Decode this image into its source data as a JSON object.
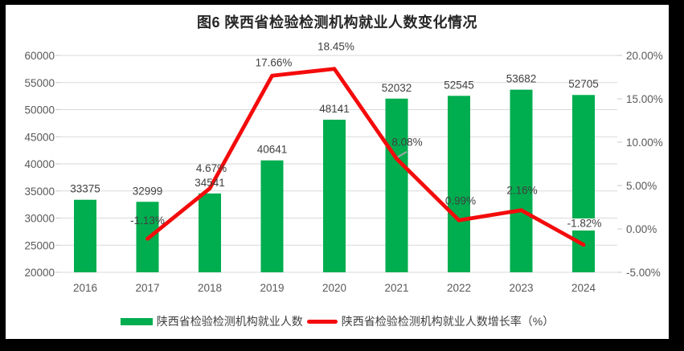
{
  "title": "图6 陕西省检验检测机构就业人数变化情况",
  "palette": {
    "bar_green": "#00ad4f",
    "line_red": "#f40b0b",
    "gridline": "#d9d9d9",
    "tick": "#c9c9c9",
    "axis_text": "#595959",
    "data_label_text": "#404040",
    "panel_bg": "#ffffff",
    "frame_bg": "#000000",
    "leader_line": "#a6a6a6"
  },
  "chart_data": {
    "type": "bar",
    "subtype": "combo-bar-line",
    "title": "图6 陕西省检验检测机构就业人数变化情况",
    "categories": [
      "2016",
      "2017",
      "2018",
      "2019",
      "2020",
      "2021",
      "2022",
      "2023",
      "2024"
    ],
    "series": [
      {
        "name": "陕西省检验检测机构就业人数",
        "type": "bar",
        "axis": "left",
        "values": [
          33375,
          32999,
          34541,
          40641,
          48141,
          52032,
          52545,
          53682,
          52705
        ],
        "labels": [
          "33375",
          "32999",
          "34541",
          "40641",
          "48141",
          "52032",
          "52545",
          "53682",
          "52705"
        ]
      },
      {
        "name": "陕西省检验检测机构就业人数增长率（%）",
        "type": "line",
        "axis": "right",
        "values": [
          null,
          -1.13,
          4.67,
          17.66,
          18.45,
          8.08,
          0.99,
          2.16,
          -1.82
        ],
        "labels": [
          null,
          "-1.13%",
          "4.67%",
          "17.66%",
          "18.45%",
          "8.08%",
          "0.99%",
          "2.16%",
          "-1.82%"
        ]
      }
    ],
    "left_axis": {
      "min": 20000,
      "max": 60000,
      "step": 5000,
      "tick_labels": [
        "20000",
        "25000",
        "30000",
        "35000",
        "40000",
        "45000",
        "50000",
        "55000",
        "60000"
      ]
    },
    "right_axis": {
      "min": -5,
      "max": 20,
      "step": 5,
      "tick_labels": [
        "-5.00%",
        "0.00%",
        "5.00%",
        "10.00%",
        "15.00%",
        "20.00%"
      ]
    },
    "grid": true,
    "legend_position": "bottom",
    "legend": [
      {
        "swatch": "green-bar-swatch",
        "label": "陕西省检验检测机构就业人数"
      },
      {
        "swatch": "red-line-swatch",
        "label": "陕西省检验检测机构就业人数增长率（%）"
      }
    ]
  }
}
